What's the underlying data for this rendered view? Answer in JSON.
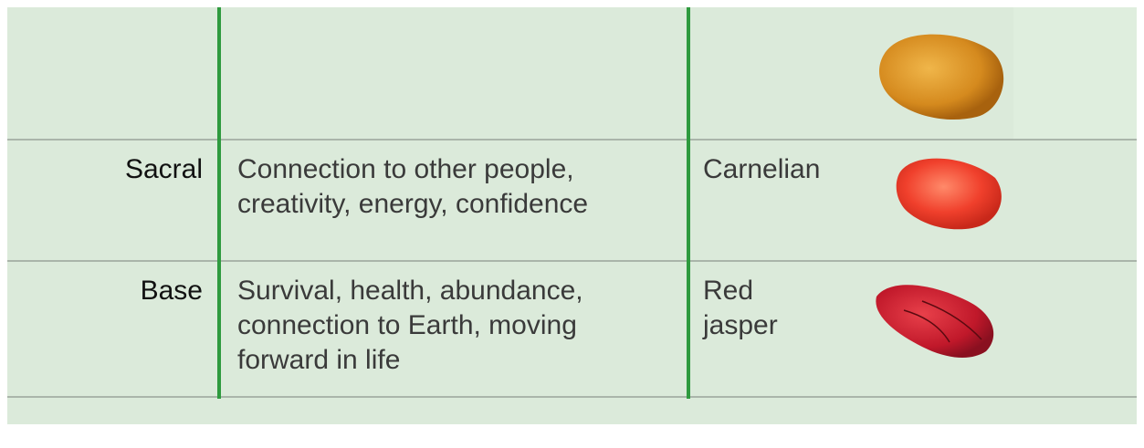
{
  "table": {
    "rows": [
      {
        "chakra": "Sacral",
        "meaning": [
          "Connection to other people,",
          "creativity, energy, confidence"
        ],
        "stone": [
          "Carnelian"
        ]
      },
      {
        "chakra": "Base",
        "meaning": [
          "Survival, health, abundance,",
          "connection to Earth, moving",
          "forward in life"
        ],
        "stone": [
          "Red",
          "jasper"
        ]
      }
    ]
  }
}
